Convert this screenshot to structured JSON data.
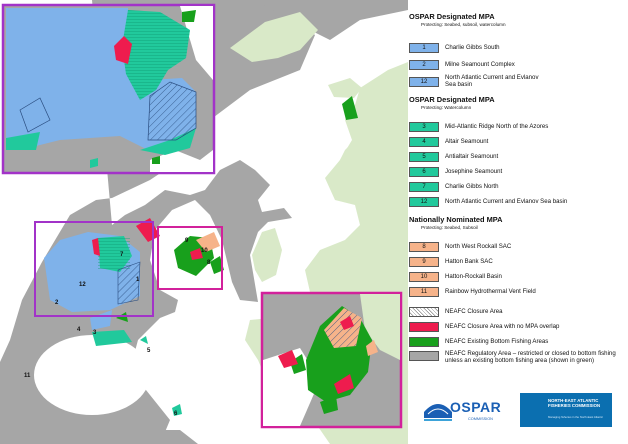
{
  "colors": {
    "sea": "#ffffff",
    "land": "#d9e9c8",
    "regulatory_area": "#a6a6a6",
    "ospar_seabed": "#7fb2ea",
    "ospar_watercolumn": "#21c99c",
    "national_mpa": "#f6b38a",
    "closure_no_mpa": "#ee1c4e",
    "existing_fishing": "#18a01c",
    "inset_frame": "#a233c8",
    "focus_frame": "#d2219b"
  },
  "map_labels": {
    "z1": "1",
    "z2": "2",
    "z3": "3",
    "z4": "4",
    "z5": "5",
    "z6": "6",
    "z7": "7",
    "z8": "8",
    "z9": "9",
    "z10": "10",
    "z11": "11",
    "z12": "12"
  },
  "legend": {
    "section1": {
      "title": "OSPAR Designated MPA",
      "subtitle": "Protecting: Seabed, subsoil, watercolumn",
      "items": [
        {
          "num": "1",
          "label": "Charlie Gibbs South"
        },
        {
          "num": "2",
          "label": "Milne Seamount Complex"
        },
        {
          "num": "12",
          "label": "North Atlantic Current and Evlanov Sea basin"
        }
      ]
    },
    "section2": {
      "title": "OSPAR Designated MPA",
      "subtitle": "Protecting: Watercolumn",
      "items": [
        {
          "num": "3",
          "label": "Mid-Atlantic Ridge North of the Azores"
        },
        {
          "num": "4",
          "label": "Altair Seamount"
        },
        {
          "num": "5",
          "label": "Antialtair Seamount"
        },
        {
          "num": "6",
          "label": "Josephine Seamount"
        },
        {
          "num": "7",
          "label": "Charlie Gibbs North"
        },
        {
          "num": "12",
          "label": "North Atlantic Current and Evlanov Sea basin"
        }
      ]
    },
    "section3": {
      "title": "Nationally Nominated MPA",
      "subtitle": "Protecting: Seabed, Subsoil",
      "items": [
        {
          "num": "8",
          "label": "North West Rockall SAC"
        },
        {
          "num": "9",
          "label": "Hatton Bank SAC"
        },
        {
          "num": "10",
          "label": "Hatton-Rockall Basin"
        },
        {
          "num": "11",
          "label": "Rainbow Hydrothermal Vent Field"
        }
      ]
    },
    "section4": {
      "items": [
        {
          "label": "NEAFC Closure Area"
        },
        {
          "label": "NEAFC Closure Area with no MPA overlap"
        },
        {
          "label": "NEAFC Existing Bottom Fishing Areas"
        },
        {
          "label": "NEAFC Regulatory Area – restricted or closed to bottom fishing unless an existing bottom fishing area (shown in green)"
        }
      ]
    }
  },
  "logos": {
    "ospar_word": "OSPAR",
    "ospar_sub": "COMMISSION",
    "neafc_title": "NORTH-EAST ATLANTIC FISHERIES COMMISSION",
    "neafc_sub": "Managing fisheries in the North-East Atlantic"
  }
}
